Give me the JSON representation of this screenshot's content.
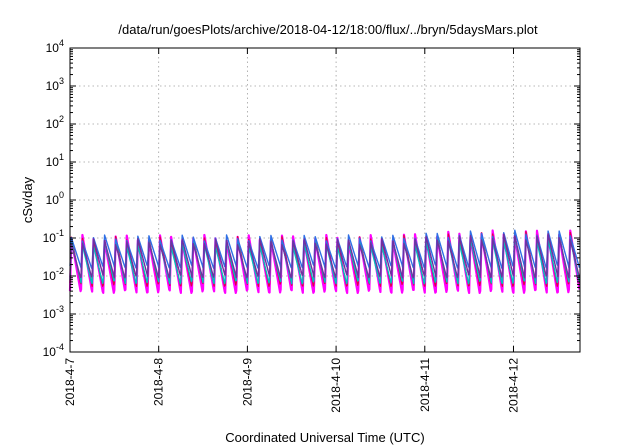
{
  "chart_data": {
    "type": "line",
    "title": "/data/run/goesPlots/archive/2018-04-12/18:00/flux/../bryn/5daysMars.plot",
    "xlabel": "Coordinated Universal Time (UTC)",
    "ylabel": "cSv/day",
    "yscale": "log",
    "ylim": [
      0.0001,
      10000
    ],
    "y_ticks": [
      {
        "base": "10",
        "exp": "-4"
      },
      {
        "base": "10",
        "exp": "-3"
      },
      {
        "base": "10",
        "exp": "-2"
      },
      {
        "base": "10",
        "exp": "-1"
      },
      {
        "base": "10",
        "exp": "0"
      },
      {
        "base": "10",
        "exp": "1"
      },
      {
        "base": "10",
        "exp": "2"
      },
      {
        "base": "10",
        "exp": "3"
      },
      {
        "base": "10",
        "exp": "4"
      }
    ],
    "xlim": [
      "2018-04-07 00:00",
      "2018-04-12 18:00"
    ],
    "x_ticks": [
      "2018-4-7",
      "2018-4-8",
      "2018-4-9",
      "2018-4-10",
      "2018-4-11",
      "2018-4-12"
    ],
    "grid": true,
    "cycles_per_day": 8,
    "series": [
      {
        "color": "#ff00ff",
        "peak": 0.1,
        "trough": 0.004
      },
      {
        "color": "#e0004a",
        "peak": 0.09,
        "trough": 0.005
      },
      {
        "color": "#00c0c0",
        "peak": 0.07,
        "trough": 0.007
      },
      {
        "color": "#2e6fe6",
        "peak": 0.1,
        "trough": 0.015
      },
      {
        "color": "#7030a0",
        "peak": 0.08,
        "trough": 0.01
      }
    ]
  }
}
